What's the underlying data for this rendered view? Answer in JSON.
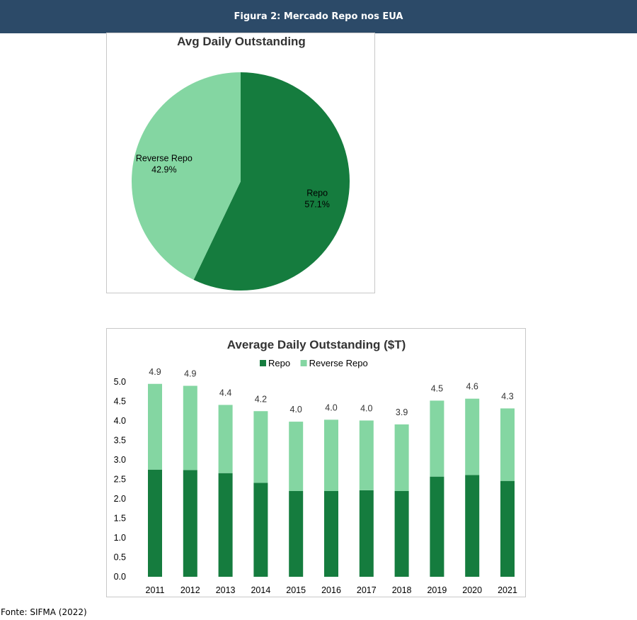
{
  "header": {
    "title": "Figura 2: Mercado Repo nos EUA"
  },
  "colors": {
    "repo": "#157c3e",
    "reverse_repo": "#84d6a2",
    "header_bg": "#2c4a68"
  },
  "chart_data": [
    {
      "type": "pie",
      "title": "Avg Daily Outstanding",
      "slices": [
        {
          "name": "Repo",
          "value": 57.1,
          "label": "57.1%"
        },
        {
          "name": "Reverse Repo",
          "value": 42.9,
          "label": "42.9%"
        }
      ]
    },
    {
      "type": "bar",
      "stacked": true,
      "title": "Average Daily Outstanding ($T)",
      "categories": [
        "2011",
        "2012",
        "2013",
        "2014",
        "2015",
        "2016",
        "2017",
        "2018",
        "2019",
        "2020",
        "2021"
      ],
      "series": [
        {
          "name": "Repo",
          "values": [
            2.75,
            2.74,
            2.66,
            2.41,
            2.2,
            2.2,
            2.22,
            2.2,
            2.57,
            2.61,
            2.46
          ]
        },
        {
          "name": "Reverse Repo",
          "values": [
            2.2,
            2.16,
            1.75,
            1.84,
            1.78,
            1.83,
            1.79,
            1.71,
            1.95,
            1.96,
            1.86
          ]
        }
      ],
      "totals": [
        "4.9",
        "4.9",
        "4.4",
        "4.2",
        "4.0",
        "4.0",
        "4.0",
        "3.9",
        "4.5",
        "4.6",
        "4.3"
      ],
      "ylim": [
        0,
        5
      ],
      "yticks": [
        "0.0",
        "0.5",
        "1.0",
        "1.5",
        "2.0",
        "2.5",
        "3.0",
        "3.5",
        "4.0",
        "4.5",
        "5.0"
      ],
      "legend": "top",
      "grid": false
    }
  ],
  "footer": {
    "source": "Fonte: SIFMA (2022)"
  }
}
